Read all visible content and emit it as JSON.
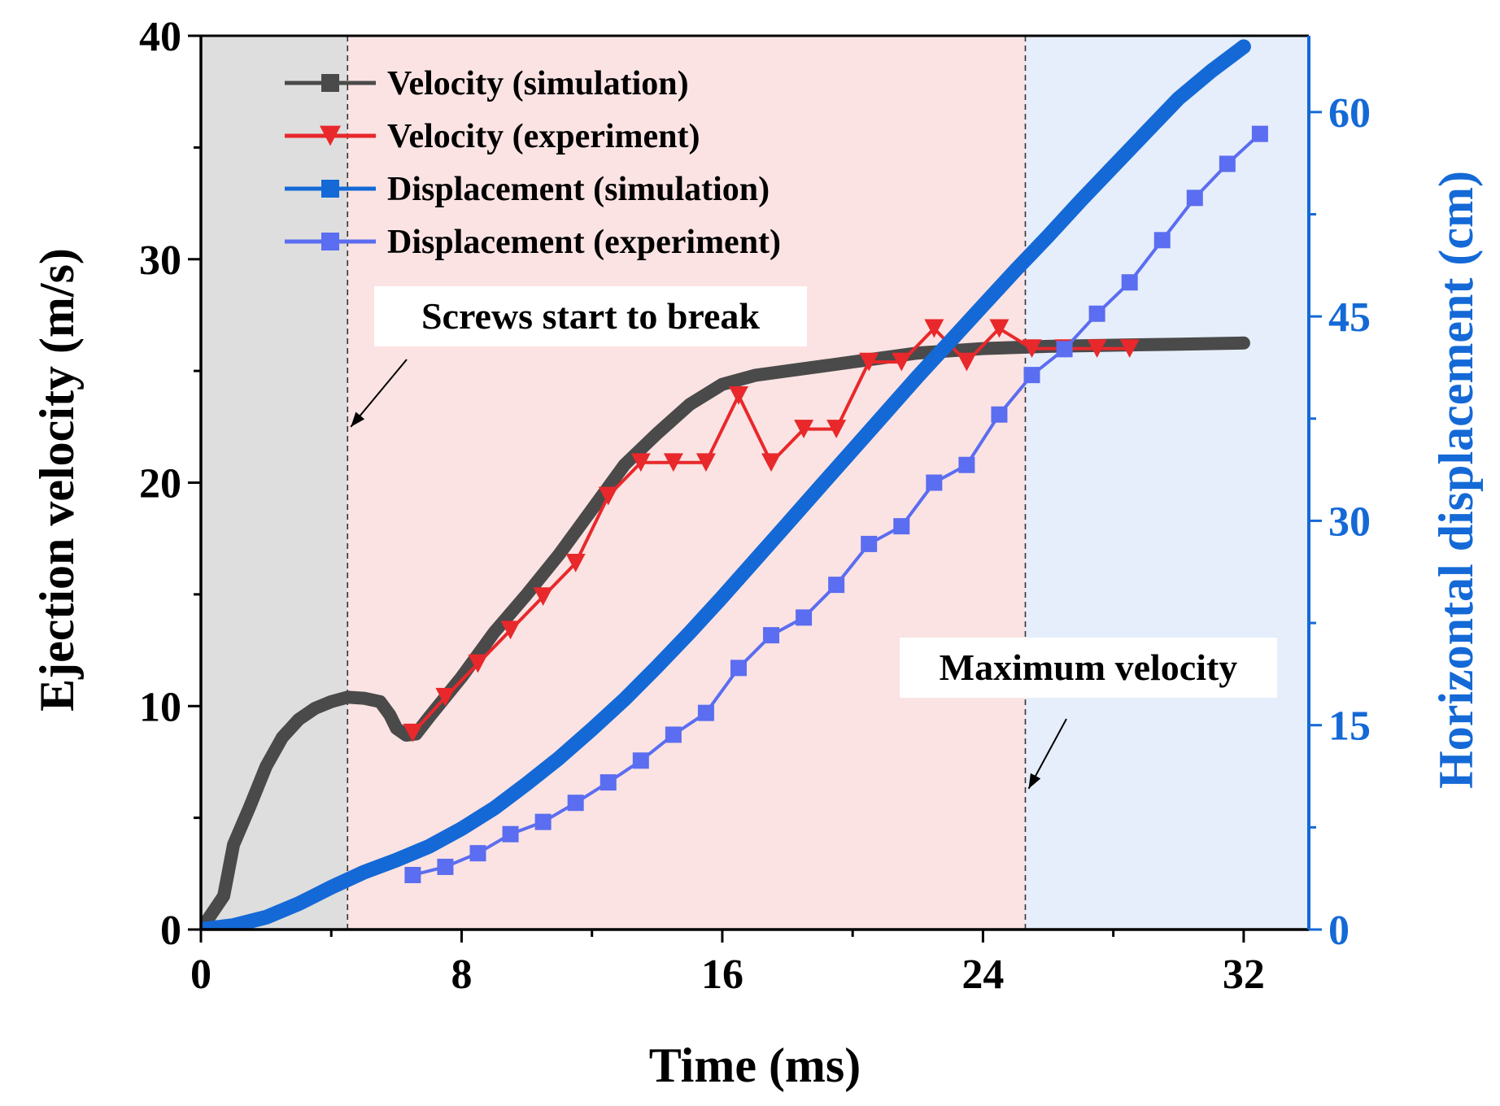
{
  "chart_data": {
    "type": "line",
    "title": "",
    "xlabel": "Time (ms)",
    "ylabel": "Ejection velocity (m/s)",
    "y2label": "Horizontal displacement (cm)",
    "xlim": [
      0,
      34
    ],
    "ylim": [
      0,
      40
    ],
    "y2lim": [
      0,
      65.6
    ],
    "xticks": [
      0,
      8,
      16,
      24,
      32
    ],
    "yticks": [
      0,
      10,
      20,
      30,
      40
    ],
    "y2ticks": [
      0,
      15,
      30,
      45,
      60
    ],
    "legend_position": "top-left",
    "regions": [
      {
        "from": 0,
        "to": 4.5,
        "color": "#dedede"
      },
      {
        "from": 4.5,
        "to": 25.3,
        "color": "#fbe3e3"
      },
      {
        "from": 25.3,
        "to": 34,
        "color": "#e6eefb"
      }
    ],
    "vlines": [
      4.5,
      25.3
    ],
    "annotations": [
      {
        "text": "Screws start to break",
        "x": 4.5,
        "y": 22.5
      },
      {
        "text": "Maximum velocity",
        "x": 25.3,
        "y": 6.3
      }
    ],
    "series": [
      {
        "name": "Velocity (simulation)",
        "axis": "left",
        "color": "#4a4a4a",
        "marker": "square",
        "line_width": 16,
        "x": [
          0,
          0.7,
          1.0,
          1.5,
          2.0,
          2.5,
          3.0,
          3.5,
          4.0,
          4.5,
          5.0,
          5.5,
          5.8,
          6.0,
          6.3,
          6.6,
          7.0,
          8.0,
          9.0,
          10.0,
          11.0,
          12.0,
          13.0,
          14.0,
          15.0,
          16.0,
          17.0,
          18.0,
          20.0,
          22.0,
          24.0,
          26.0,
          28.0,
          30.0,
          32.0
        ],
        "values": [
          0,
          1.5,
          3.8,
          5.5,
          7.3,
          8.6,
          9.4,
          9.9,
          10.2,
          10.4,
          10.35,
          10.2,
          9.6,
          9.0,
          8.7,
          8.75,
          9.5,
          11.3,
          13.3,
          15.0,
          16.8,
          18.8,
          20.8,
          22.2,
          23.5,
          24.4,
          24.8,
          25.0,
          25.4,
          25.8,
          26.0,
          26.1,
          26.15,
          26.2,
          26.25
        ]
      },
      {
        "name": "Velocity (experiment)",
        "axis": "left",
        "color": "#e8282b",
        "marker": "triangle-down",
        "line_width": 4,
        "x": [
          6.5,
          7.5,
          8.5,
          9.5,
          10.5,
          11.5,
          12.5,
          13.5,
          14.5,
          15.5,
          16.5,
          17.5,
          18.5,
          19.5,
          20.5,
          21.5,
          22.5,
          23.5,
          24.5,
          25.5,
          26.5,
          27.5,
          28.5
        ],
        "values": [
          8.8,
          10.4,
          11.9,
          13.4,
          14.9,
          16.4,
          19.4,
          20.9,
          20.9,
          20.9,
          23.9,
          20.9,
          22.4,
          22.4,
          25.4,
          25.4,
          26.9,
          25.4,
          26.9,
          26.0,
          26.0,
          26.0,
          26.0
        ]
      },
      {
        "name": "Displacement (simulation)",
        "axis": "right",
        "color": "#1469d6",
        "marker": "square",
        "line_width": 18,
        "x": [
          0,
          1,
          2,
          3,
          4,
          5,
          6,
          7,
          8,
          9,
          10,
          11,
          12,
          13,
          14,
          15,
          16,
          17,
          18,
          19,
          20,
          21,
          22,
          23,
          24,
          25,
          26,
          27,
          28,
          29,
          30,
          31,
          32
        ],
        "values": [
          0,
          0.3,
          0.9,
          1.9,
          3.1,
          4.2,
          5.1,
          6.1,
          7.4,
          8.9,
          10.7,
          12.6,
          14.7,
          16.9,
          19.3,
          21.8,
          24.4,
          27.1,
          29.8,
          32.5,
          35.2,
          37.9,
          40.6,
          43.2,
          45.8,
          48.4,
          50.9,
          53.5,
          56.0,
          58.5,
          61.0,
          63.0,
          64.8
        ]
      },
      {
        "name": "Displacement (experiment)",
        "axis": "right",
        "color": "#5b6df0",
        "marker": "square",
        "line_width": 4,
        "x": [
          6.5,
          7.5,
          8.5,
          9.5,
          10.5,
          11.5,
          12.5,
          13.5,
          14.5,
          15.5,
          16.5,
          17.5,
          18.5,
          19.5,
          20.5,
          21.5,
          22.5,
          23.5,
          24.5,
          25.5,
          26.5,
          27.5,
          28.5,
          29.5,
          30.5,
          31.5,
          32.5
        ],
        "values": [
          4.0,
          4.6,
          5.6,
          7.0,
          7.9,
          9.3,
          10.8,
          12.4,
          14.3,
          15.9,
          19.2,
          21.6,
          22.9,
          25.3,
          28.3,
          29.6,
          32.8,
          34.1,
          37.8,
          40.7,
          42.6,
          45.2,
          47.5,
          50.6,
          53.7,
          56.2,
          58.4
        ]
      }
    ]
  }
}
